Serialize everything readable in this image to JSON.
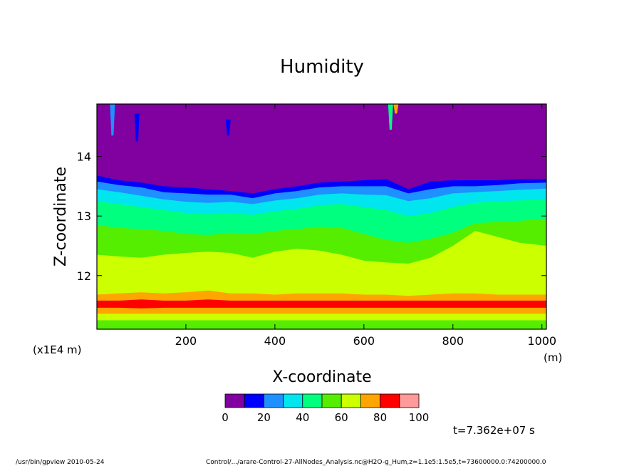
{
  "chart_data": {
    "type": "heatmap",
    "title": "Humidity",
    "xlabel": "X-coordinate",
    "ylabel": "Z-coordinate",
    "x_unit_label": "(m)",
    "y_unit_label": "(x1E4 m)",
    "xlim": [
      0,
      1010
    ],
    "ylim": [
      11.1,
      14.88
    ],
    "x_ticks": [
      "200",
      "400",
      "600",
      "800",
      "1000"
    ],
    "y_ticks": [
      "12",
      "13",
      "14"
    ],
    "x_tick_values": [
      200,
      400,
      600,
      800,
      1000
    ],
    "y_tick_values": [
      12,
      13,
      14
    ],
    "colorbar": {
      "levels": [
        0,
        10,
        20,
        30,
        40,
        50,
        60,
        70,
        80,
        90,
        100
      ],
      "labels": [
        "0",
        "20",
        "40",
        "60",
        "80",
        "100"
      ],
      "label_values": [
        0,
        20,
        40,
        60,
        80,
        100
      ],
      "colors": [
        "#8000a0",
        "#0000ff",
        "#1e90ff",
        "#00e5ee",
        "#00ff7f",
        "#55ee00",
        "#ccff00",
        "#ffa500",
        "#ff0000",
        "#ff9a9a"
      ]
    },
    "band_boundaries": {
      "x": [
        0,
        50,
        100,
        150,
        200,
        250,
        300,
        350,
        400,
        450,
        500,
        550,
        600,
        650,
        700,
        750,
        800,
        850,
        900,
        950,
        1010
      ],
      "upper_edges": [
        {
          "value": 10,
          "z": [
            13.68,
            13.6,
            13.56,
            13.5,
            13.48,
            13.45,
            13.42,
            13.38,
            13.45,
            13.5,
            13.56,
            13.58,
            13.6,
            13.62,
            13.45,
            13.58,
            13.6,
            13.6,
            13.6,
            13.62,
            13.62
          ]
        },
        {
          "value": 20,
          "z": [
            13.58,
            13.52,
            13.48,
            13.4,
            13.38,
            13.36,
            13.36,
            13.3,
            13.38,
            13.42,
            13.48,
            13.5,
            13.5,
            13.5,
            13.38,
            13.45,
            13.5,
            13.5,
            13.52,
            13.55,
            13.56
          ]
        },
        {
          "value": 30,
          "z": [
            13.45,
            13.4,
            13.34,
            13.28,
            13.24,
            13.22,
            13.24,
            13.2,
            13.26,
            13.3,
            13.36,
            13.38,
            13.36,
            13.35,
            13.25,
            13.3,
            13.38,
            13.4,
            13.42,
            13.44,
            13.46
          ]
        },
        {
          "value": 40,
          "z": [
            13.25,
            13.2,
            13.15,
            13.1,
            13.05,
            13.03,
            13.05,
            13.02,
            13.08,
            13.12,
            13.18,
            13.2,
            13.15,
            13.1,
            13.0,
            13.05,
            13.15,
            13.22,
            13.25,
            13.26,
            13.28
          ]
        },
        {
          "value": 50,
          "z": [
            12.85,
            12.8,
            12.78,
            12.75,
            12.7,
            12.68,
            12.72,
            12.7,
            12.75,
            12.78,
            12.82,
            12.8,
            12.7,
            12.6,
            12.55,
            12.62,
            12.72,
            12.88,
            12.9,
            12.92,
            12.95
          ]
        },
        {
          "value": 60,
          "z": [
            12.35,
            12.32,
            12.3,
            12.35,
            12.38,
            12.4,
            12.38,
            12.3,
            12.4,
            12.45,
            12.42,
            12.35,
            12.25,
            12.22,
            12.2,
            12.3,
            12.5,
            12.75,
            12.65,
            12.55,
            12.5
          ]
        },
        {
          "value": 70,
          "z": [
            11.68,
            11.7,
            11.72,
            11.7,
            11.72,
            11.75,
            11.7,
            11.7,
            11.68,
            11.7,
            11.7,
            11.7,
            11.68,
            11.68,
            11.66,
            11.68,
            11.7,
            11.7,
            11.68,
            11.68,
            11.68
          ]
        },
        {
          "value": 80,
          "z": [
            11.58,
            11.58,
            11.6,
            11.58,
            11.58,
            11.6,
            11.58,
            11.58,
            11.58,
            11.58,
            11.58,
            11.58,
            11.58,
            11.58,
            11.58,
            11.58,
            11.58,
            11.58,
            11.58,
            11.58,
            11.58
          ]
        },
        {
          "value": 70,
          "z": [
            11.46,
            11.46,
            11.45,
            11.46,
            11.46,
            11.46,
            11.46,
            11.46,
            11.46,
            11.46,
            11.46,
            11.46,
            11.46,
            11.46,
            11.46,
            11.46,
            11.46,
            11.46,
            11.46,
            11.46,
            11.46
          ]
        },
        {
          "value": 60,
          "z": [
            11.36,
            11.36,
            11.36,
            11.36,
            11.36,
            11.36,
            11.36,
            11.36,
            11.36,
            11.36,
            11.36,
            11.36,
            11.36,
            11.36,
            11.36,
            11.36,
            11.36,
            11.36,
            11.36,
            11.36,
            11.36
          ]
        },
        {
          "value": 50,
          "z": [
            11.25,
            11.25,
            11.25,
            11.25,
            11.25,
            11.25,
            11.25,
            11.25,
            11.25,
            11.25,
            11.25,
            11.25,
            11.25,
            11.25,
            11.25,
            11.25,
            11.25,
            11.25,
            11.25,
            11.25,
            11.25
          ]
        }
      ],
      "bottom_value": 50
    },
    "plumes": [
      {
        "x": 35,
        "z_top": 14.88,
        "z_bottom": 14.35,
        "value": 20
      },
      {
        "x": 90,
        "z_top": 14.72,
        "z_bottom": 14.25,
        "value": 10
      },
      {
        "x": 295,
        "z_top": 14.62,
        "z_bottom": 14.35,
        "value": 10
      },
      {
        "x": 660,
        "z_top": 14.88,
        "z_bottom": 14.45,
        "value": 40
      },
      {
        "x": 672,
        "z_top": 14.88,
        "z_bottom": 14.72,
        "value": 70
      }
    ],
    "time_label": "t=7.362e+07 s",
    "footer_left": "/usr/bin/gpview  2010-05-24",
    "footer_right": "Control/.../arare-Control-27-AllNodes_Analysis.nc@H2O-g_Hum,z=1.1e5:1.5e5,t=73600000.0:74200000.0"
  }
}
